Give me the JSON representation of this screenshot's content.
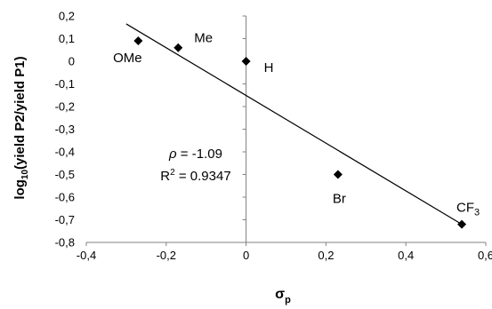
{
  "chart_data": {
    "type": "scatter",
    "xlabel": "σ",
    "xlabel_sub": "p",
    "ylabel": "log",
    "ylabel_sub": "10",
    "ylabel_rest": "(yield P2/yield P1)",
    "xlim": [
      -0.4,
      0.6
    ],
    "ylim": [
      -0.8,
      0.2
    ],
    "x_ticks": [
      -0.4,
      -0.2,
      0,
      0.2,
      0.4,
      0.6
    ],
    "x_tick_labels": [
      "-0,4",
      "-0,2",
      "0",
      "0,2",
      "0,4",
      "0,6"
    ],
    "y_ticks": [
      0.2,
      0.1,
      0,
      -0.1,
      -0.2,
      -0.3,
      -0.4,
      -0.5,
      -0.6,
      -0.7,
      -0.8
    ],
    "y_tick_labels": [
      "0,2",
      "0,1",
      "0",
      "-0,1",
      "-0,2",
      "-0,3",
      "-0,4",
      "-0,5",
      "-0,6",
      "-0,7",
      "-0,8"
    ],
    "grid": false,
    "marker": "diamond",
    "points": [
      {
        "label": "OMe",
        "x": -0.27,
        "y": 0.09
      },
      {
        "label": "Me",
        "x": -0.17,
        "y": 0.06
      },
      {
        "label": "H",
        "x": 0.0,
        "y": 0.0
      },
      {
        "label": "Br",
        "x": 0.23,
        "y": -0.5
      },
      {
        "label": "CF",
        "label_sub": "3",
        "x": 0.54,
        "y": -0.72
      }
    ],
    "trendline": {
      "x": [
        -0.3,
        0.54
      ],
      "y": [
        0.165,
        -0.72
      ]
    },
    "annotations": {
      "rho_symbol": "ρ",
      "rho_rest": " = -1.09",
      "r2_prefix": "R",
      "r2_sup": "2",
      "r2_rest": " = 0.9347"
    },
    "colors": {
      "axis": "#808080",
      "marker": "#000000",
      "trendline": "#000000",
      "text": "#000000"
    }
  }
}
